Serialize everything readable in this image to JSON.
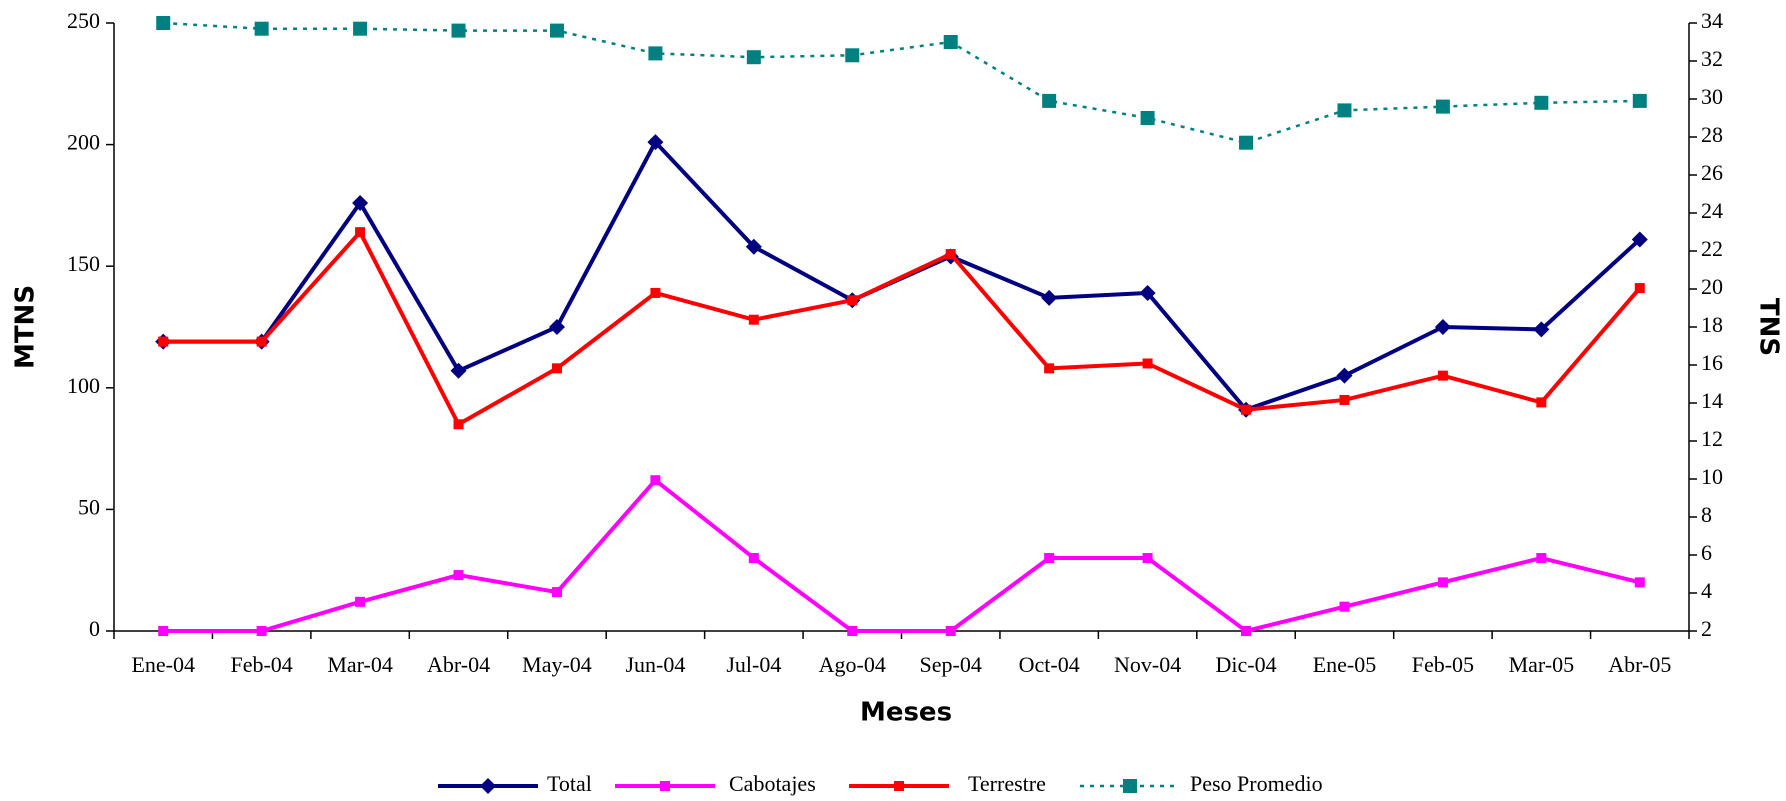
{
  "chart_data": {
    "type": "line",
    "categories": [
      "Ene-04",
      "Feb-04",
      "Mar-04",
      "Abr-04",
      "May-04",
      "Jun-04",
      "Jul-04",
      "Ago-04",
      "Sep-04",
      "Oct-04",
      "Nov-04",
      "Dic-04",
      "Ene-05",
      "Feb-05",
      "Mar-05",
      "Abr-05"
    ],
    "series": [
      {
        "name": "Total",
        "color": "#000080",
        "marker": "diamond",
        "values": [
          119,
          119,
          176,
          107,
          125,
          201,
          158,
          136,
          154,
          137,
          139,
          91,
          105,
          125,
          124,
          161
        ]
      },
      {
        "name": "Cabotajes",
        "color": "#ff00ff",
        "marker": "square",
        "values": [
          0,
          0,
          12,
          23,
          16,
          62,
          30,
          0,
          0,
          30,
          30,
          0,
          10,
          20,
          30,
          20
        ]
      },
      {
        "name": "Terrestre",
        "color": "#ff0000",
        "marker": "square",
        "values": [
          119,
          119,
          164,
          85,
          108,
          139,
          128,
          136,
          155,
          108,
          110,
          91,
          95,
          105,
          94,
          141
        ]
      },
      {
        "name": "Peso Promedio",
        "color": "#008080",
        "marker": "square",
        "dash": "dotted",
        "axis": "y2",
        "values": [
          34.0,
          33.7,
          33.7,
          33.6,
          33.6,
          32.4,
          32.2,
          32.3,
          33.0,
          29.9,
          29.0,
          27.7,
          29.4,
          29.6,
          29.8,
          29.9
        ]
      }
    ],
    "xlabel": "Meses",
    "ylabel": "MTNS",
    "y2label": "TNS",
    "ylim": [
      0,
      250
    ],
    "yticks": [
      0,
      50,
      100,
      150,
      200,
      250
    ],
    "y2lim": [
      2,
      34
    ],
    "y2ticks": [
      2,
      4,
      6,
      8,
      10,
      12,
      14,
      16,
      18,
      20,
      22,
      24,
      26,
      28,
      30,
      32,
      34
    ],
    "legend": "bottom"
  }
}
